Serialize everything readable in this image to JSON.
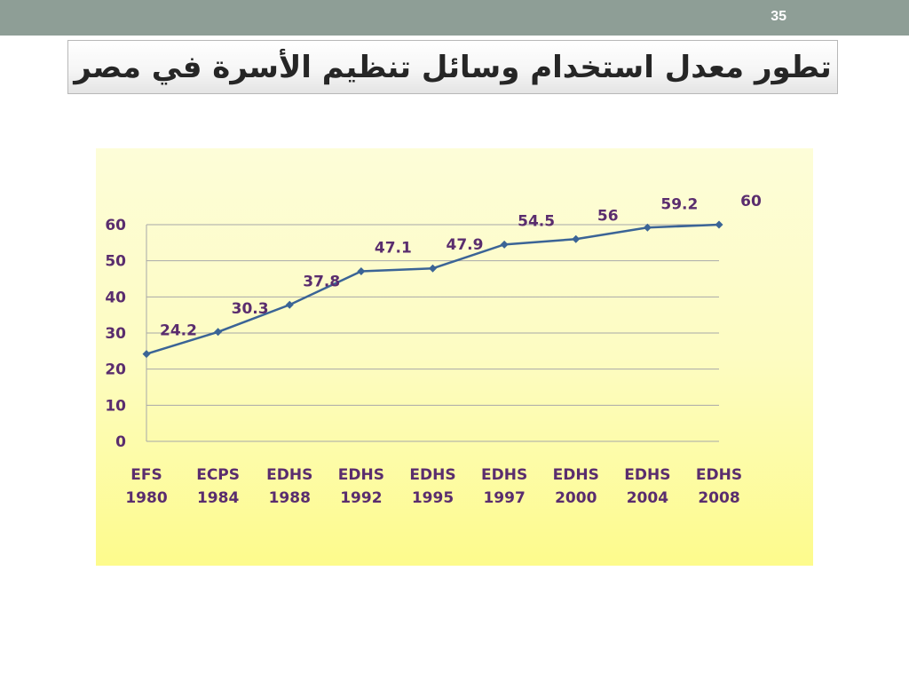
{
  "slide": {
    "number": "35",
    "title": "تطور معدل استخدام وسائل تنظيم الأسرة في مصر"
  },
  "colors": {
    "top_bar": "#8e9e96",
    "line": "#3b6496",
    "label": "#5a2d6e",
    "grid": "#a8a8a8",
    "background_top": "#fdfdd8",
    "background_bottom": "#fdfb8c"
  },
  "chart_data": {
    "type": "line",
    "categories": [
      [
        "EFS",
        "1980"
      ],
      [
        "ECPS",
        "1984"
      ],
      [
        "EDHS",
        "1988"
      ],
      [
        "EDHS",
        "1992"
      ],
      [
        "EDHS",
        "1995"
      ],
      [
        "EDHS",
        "1997"
      ],
      [
        "EDHS",
        "2000"
      ],
      [
        "EDHS",
        "2004"
      ],
      [
        "EDHS",
        "2008"
      ]
    ],
    "values": [
      24.2,
      30.3,
      37.8,
      47.1,
      47.9,
      54.5,
      56,
      59.2,
      60
    ],
    "data_labels": [
      "24.2",
      "30.3",
      "37.8",
      "47.1",
      "47.9",
      "54.5",
      "56",
      "59.2",
      "60"
    ],
    "y_ticks": [
      0,
      10,
      20,
      30,
      40,
      50,
      60
    ],
    "ylim": [
      0,
      60
    ],
    "grid": true,
    "legend": "none",
    "marker": "diamond"
  }
}
